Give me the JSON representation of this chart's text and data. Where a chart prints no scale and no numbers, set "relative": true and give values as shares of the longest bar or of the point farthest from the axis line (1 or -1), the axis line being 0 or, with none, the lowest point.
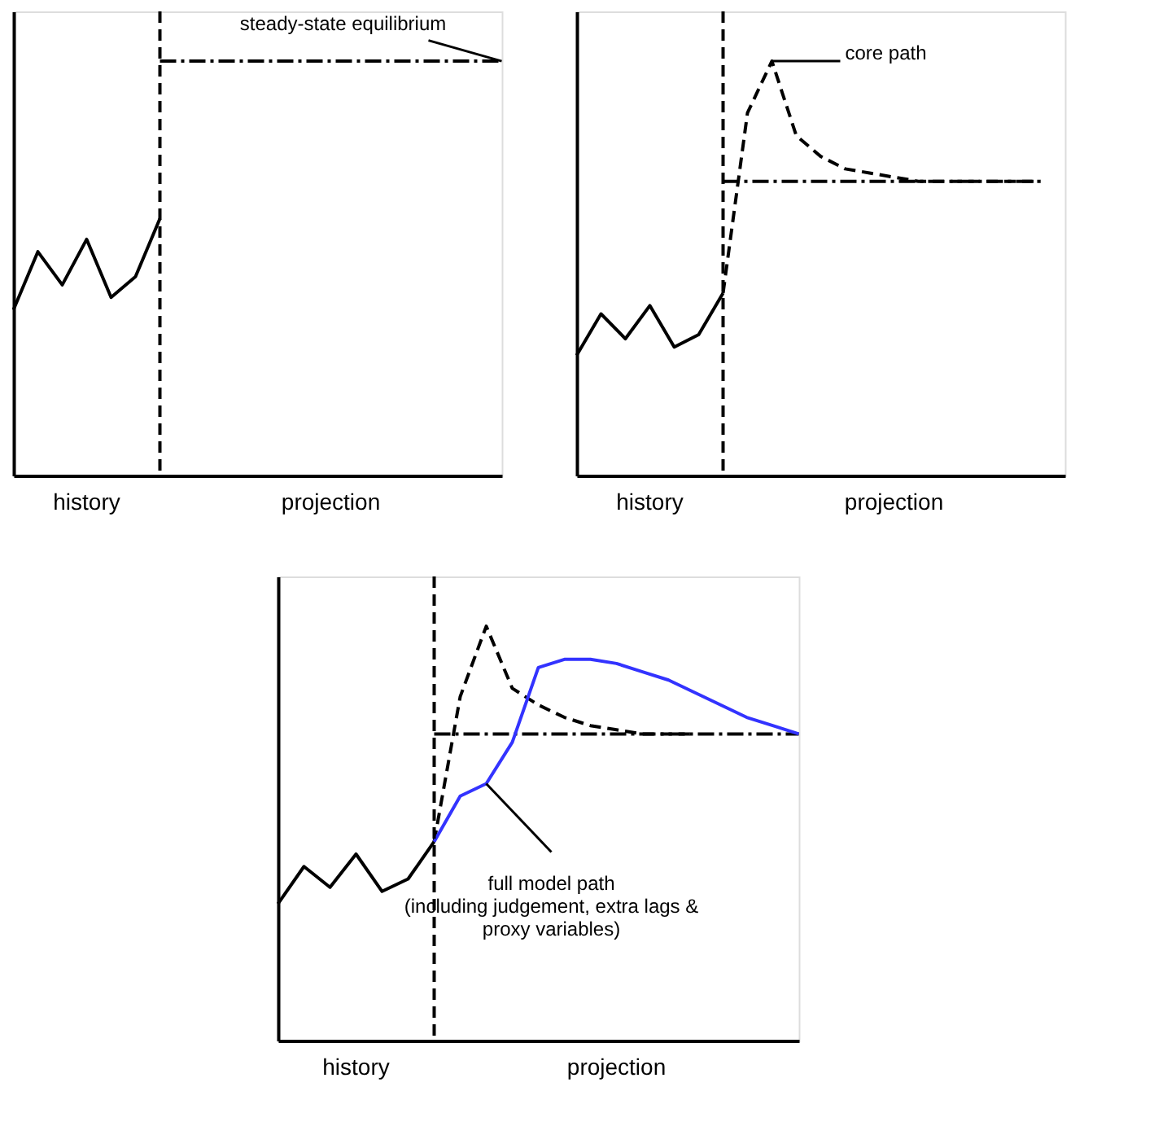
{
  "chart_data": [
    {
      "type": "line",
      "relative": true,
      "tick_labels": false,
      "grid": false,
      "legend": false,
      "categories": [
        null,
        null,
        null,
        null,
        null,
        null,
        null,
        null,
        null,
        null,
        null,
        null,
        null,
        null,
        null,
        null,
        null,
        null,
        null,
        null,
        null
      ],
      "series": [
        {
          "color": "#000000",
          "line_style": "solid",
          "values": [
            0.4,
            0.54,
            0.46,
            0.57,
            0.43,
            0.48,
            0.62,
            null,
            null,
            null,
            null,
            null,
            null,
            null,
            null,
            null,
            null,
            null,
            null,
            null,
            null
          ]
        },
        {
          "color": "#000000",
          "line_style": "dotted",
          "values": [
            null,
            null,
            null,
            null,
            null,
            null,
            1,
            1,
            1,
            1,
            1,
            1,
            1,
            1,
            1,
            1,
            1,
            1,
            1,
            1,
            1
          ]
        }
      ],
      "annotations": [
        "history",
        "projection",
        "steady-state equilibrium"
      ]
    },
    {
      "type": "line",
      "relative": true,
      "tick_labels": false,
      "grid": false,
      "legend": false,
      "categories": [
        null,
        null,
        null,
        null,
        null,
        null,
        null,
        null,
        null,
        null,
        null,
        null,
        null,
        null,
        null,
        null,
        null,
        null,
        null,
        null,
        null
      ],
      "series": [
        {
          "color": "#000000",
          "line_style": "solid",
          "values": [
            0.29,
            0.39,
            0.33,
            0.41,
            0.31,
            0.34,
            0.44,
            null,
            null,
            null,
            null,
            null,
            null,
            null,
            null,
            null,
            null,
            null,
            null,
            null,
            null
          ]
        },
        {
          "color": "#000000",
          "line_style": "dotted",
          "values": [
            null,
            null,
            null,
            null,
            null,
            null,
            0.71,
            0.71,
            0.71,
            0.71,
            0.71,
            0.71,
            0.71,
            0.71,
            0.71,
            0.71,
            0.71,
            0.71,
            0.71,
            0.71,
            null
          ]
        },
        {
          "color": "#000000",
          "line_style": "dashed",
          "values": [
            null,
            null,
            null,
            null,
            null,
            null,
            0.44,
            0.875,
            1,
            0.82,
            0.77,
            0.74,
            0.73,
            0.72,
            0.71,
            0.71,
            0.71,
            0.71,
            0.71,
            0.71,
            null
          ]
        }
      ],
      "annotations": [
        "history",
        "projection",
        "core path"
      ]
    },
    {
      "type": "line",
      "relative": true,
      "tick_labels": false,
      "grid": false,
      "legend": false,
      "categories": [
        null,
        null,
        null,
        null,
        null,
        null,
        null,
        null,
        null,
        null,
        null,
        null,
        null,
        null,
        null,
        null,
        null,
        null,
        null,
        null,
        null
      ],
      "series": [
        {
          "color": "#000000",
          "line_style": "solid",
          "values": [
            0.33,
            0.42,
            0.37,
            0.45,
            0.36,
            0.39,
            0.48,
            null,
            null,
            null,
            null,
            null,
            null,
            null,
            null,
            null,
            null,
            null,
            null,
            null,
            null
          ]
        },
        {
          "color": "#000000",
          "line_style": "dotted",
          "values": [
            null,
            null,
            null,
            null,
            null,
            null,
            0.74,
            0.74,
            0.74,
            0.74,
            0.74,
            0.74,
            0.74,
            0.74,
            0.74,
            0.74,
            0.74,
            0.74,
            0.74,
            0.74,
            0.74
          ]
        },
        {
          "color": "#000000",
          "line_style": "dashed",
          "values": [
            null,
            null,
            null,
            null,
            null,
            null,
            0.48,
            0.83,
            1,
            0.85,
            0.81,
            0.78,
            0.76,
            0.75,
            0.74,
            0.74,
            0.74,
            null,
            null,
            null,
            null
          ]
        },
        {
          "color": "#3333ff",
          "line_style": "solid",
          "values": [
            null,
            null,
            null,
            null,
            null,
            null,
            0.48,
            0.59,
            0.62,
            0.72,
            0.9,
            0.92,
            0.92,
            0.91,
            0.89,
            0.87,
            0.84,
            0.81,
            0.78,
            0.76,
            0.74
          ]
        }
      ],
      "annotations": [
        "history",
        "projection",
        "full model path\n(including judgement, extra lags &\nproxy variables)"
      ]
    }
  ]
}
